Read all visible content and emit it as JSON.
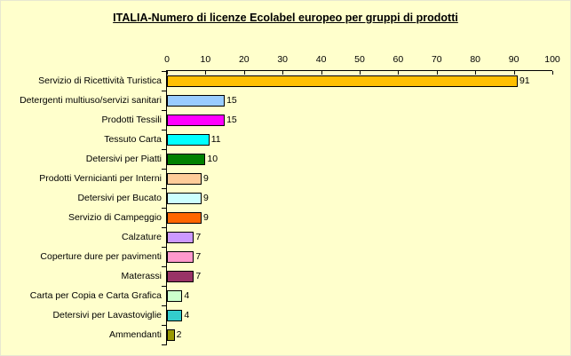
{
  "chart_data": {
    "type": "bar",
    "orientation": "horizontal",
    "title": "ITALIA-Numero di licenze Ecolabel europeo per gruppi di prodotti",
    "categories": [
      "Servizio di Ricettività Turistica",
      "Detergenti multiuso/servizi sanitari",
      "Prodotti Tessili",
      "Tessuto Carta",
      "Detersivi per Piatti",
      "Prodotti Vernicianti per Interni",
      "Detersivi per Bucato",
      "Servizio di Campeggio",
      "Calzature",
      "Coperture dure per pavimenti",
      "Materassi",
      "Carta per Copia e Carta Grafica",
      "Detersivi per Lavastoviglie",
      "Ammendanti"
    ],
    "values": [
      91,
      15,
      15,
      11,
      10,
      9,
      9,
      9,
      7,
      7,
      7,
      4,
      4,
      2
    ],
    "colors": [
      "#FFC000",
      "#99CCFF",
      "#FF00FF",
      "#00FFFF",
      "#008000",
      "#FFCC99",
      "#CCFFFF",
      "#FF6600",
      "#CC99FF",
      "#FF99CC",
      "#993366",
      "#CCFFCC",
      "#33CCCC",
      "#999900"
    ],
    "x_ticks": [
      0,
      10,
      20,
      30,
      40,
      50,
      60,
      70,
      80,
      90,
      100
    ],
    "xlim": [
      0,
      100
    ],
    "xlabel": "",
    "ylabel": "",
    "value_labels_shown": true,
    "legend": "none",
    "grid": false,
    "background_color": "#FFFFCC",
    "bar_border_color": "#000000",
    "axis_color": "#000000",
    "text_color": "#000000"
  }
}
